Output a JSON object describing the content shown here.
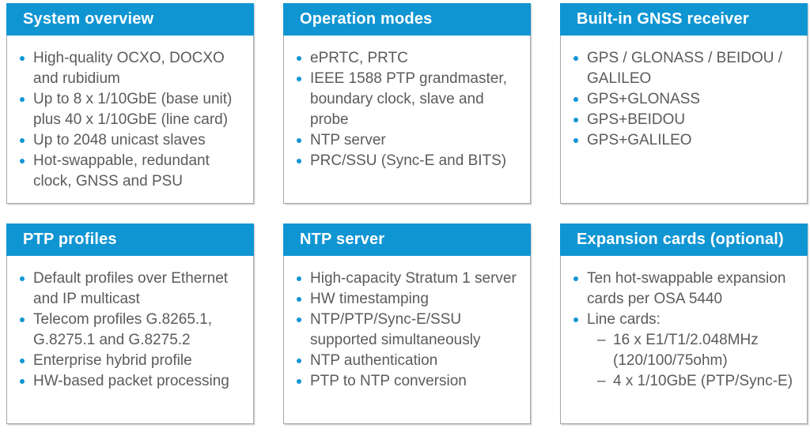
{
  "colors": {
    "header_bg": "#1095d3",
    "header_text": "#ffffff",
    "body_text": "#595b5e",
    "card_border": "#a5a7aa",
    "bullet": "#1095d3"
  },
  "icons": {
    "dash": "–"
  },
  "cards": [
    {
      "title": "System overview",
      "items": [
        {
          "lines": [
            "High-quality OCXO, DOCXO",
            "and rubidium"
          ]
        },
        {
          "lines": [
            "Up to 8 x 1/10GbE (base unit)",
            "plus 40 x 1/10GbE (line card)"
          ]
        },
        {
          "lines": [
            "Up to 2048 unicast slaves"
          ]
        },
        {
          "lines": [
            "Hot-swappable, redundant",
            "clock, GNSS and PSU"
          ]
        }
      ]
    },
    {
      "title": "Operation modes",
      "items": [
        {
          "lines": [
            "ePRTC, PRTC"
          ]
        },
        {
          "lines": [
            "IEEE 1588 PTP grandmaster,",
            "boundary clock, slave and",
            "probe"
          ]
        },
        {
          "lines": [
            "NTP server"
          ]
        },
        {
          "lines": [
            "PRC/SSU (Sync-E and BITS)"
          ]
        }
      ]
    },
    {
      "title": "Built-in GNSS receiver",
      "items": [
        {
          "lines": [
            "GPS / GLONASS / BEIDOU /",
            "GALILEO"
          ]
        },
        {
          "lines": [
            "GPS+GLONASS"
          ]
        },
        {
          "lines": [
            "GPS+BEIDOU"
          ]
        },
        {
          "lines": [
            "GPS+GALILEO"
          ]
        }
      ]
    },
    {
      "title": "PTP profiles",
      "items": [
        {
          "lines": [
            "Default profiles over Ethernet",
            "and IP multicast"
          ]
        },
        {
          "lines": [
            "Telecom profiles G.8265.1,",
            "G.8275.1 and G.8275.2"
          ]
        },
        {
          "lines": [
            "Enterprise hybrid profile"
          ]
        },
        {
          "lines": [
            "HW-based packet processing"
          ]
        }
      ]
    },
    {
      "title": "NTP server",
      "items": [
        {
          "lines": [
            "High-capacity Stratum 1 server"
          ]
        },
        {
          "lines": [
            "HW timestamping"
          ]
        },
        {
          "lines": [
            "NTP/PTP/Sync-E/SSU",
            "supported simultaneously"
          ]
        },
        {
          "lines": [
            "NTP authentication"
          ]
        },
        {
          "lines": [
            "PTP to NTP conversion"
          ]
        }
      ]
    },
    {
      "title": "Expansion cards (optional)",
      "items": [
        {
          "lines": [
            "Ten hot-swappable expansion",
            "cards per OSA 5440"
          ]
        },
        {
          "lines": [
            "Line cards:"
          ],
          "sub": [
            {
              "lines": [
                "16 x E1/T1/2.048MHz",
                "(120/100/75ohm)"
              ]
            },
            {
              "lines": [
                "4 x 1/10GbE (PTP/Sync-E)"
              ]
            }
          ]
        }
      ]
    }
  ]
}
